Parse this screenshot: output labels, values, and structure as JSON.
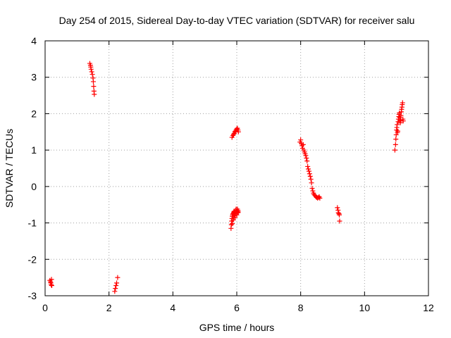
{
  "chart_data": {
    "type": "scatter",
    "title": "Day 254 of 2015, Sidereal Day-to-day VTEC variation (SDTVAR) for receiver salu",
    "xlabel": "GPS time / hours",
    "ylabel": "SDTVAR / TECUs",
    "xlim": [
      0,
      12
    ],
    "ylim": [
      -3,
      4
    ],
    "xticks": [
      "0",
      "2",
      "4",
      "6",
      "8",
      "10",
      "12"
    ],
    "yticks": [
      "-3",
      "-2",
      "-1",
      "0",
      "1",
      "2",
      "3",
      "4"
    ],
    "grid": true,
    "marker": "+",
    "series": [
      {
        "name": "SDTVAR",
        "color": "#ff0000",
        "points": [
          [
            0.15,
            -2.58
          ],
          [
            0.17,
            -2.62
          ],
          [
            0.18,
            -2.65
          ],
          [
            0.19,
            -2.7
          ],
          [
            0.2,
            -2.55
          ],
          [
            0.21,
            -2.72
          ],
          [
            1.4,
            3.38
          ],
          [
            1.42,
            3.33
          ],
          [
            1.43,
            3.28
          ],
          [
            1.44,
            3.22
          ],
          [
            1.46,
            3.15
          ],
          [
            1.48,
            3.08
          ],
          [
            1.5,
            2.98
          ],
          [
            1.51,
            2.88
          ],
          [
            1.52,
            2.75
          ],
          [
            1.53,
            2.62
          ],
          [
            1.54,
            2.53
          ],
          [
            2.18,
            -2.88
          ],
          [
            2.2,
            -2.8
          ],
          [
            2.22,
            -2.72
          ],
          [
            2.24,
            -2.65
          ],
          [
            2.27,
            -2.5
          ],
          [
            5.85,
            1.35
          ],
          [
            5.88,
            1.4
          ],
          [
            5.9,
            1.43
          ],
          [
            5.92,
            1.46
          ],
          [
            5.94,
            1.5
          ],
          [
            5.96,
            1.52
          ],
          [
            5.98,
            1.55
          ],
          [
            6.0,
            1.58
          ],
          [
            6.02,
            1.6
          ],
          [
            6.04,
            1.55
          ],
          [
            6.05,
            1.5
          ],
          [
            5.82,
            -1.15
          ],
          [
            5.83,
            -1.05
          ],
          [
            5.84,
            -0.95
          ],
          [
            5.85,
            -0.88
          ],
          [
            5.86,
            -0.82
          ],
          [
            5.87,
            -0.78
          ],
          [
            5.88,
            -0.75
          ],
          [
            5.9,
            -0.72
          ],
          [
            5.91,
            -0.7
          ],
          [
            5.92,
            -0.68
          ],
          [
            5.93,
            -0.75
          ],
          [
            5.94,
            -0.8
          ],
          [
            5.95,
            -0.85
          ],
          [
            5.96,
            -0.72
          ],
          [
            5.97,
            -0.65
          ],
          [
            5.98,
            -0.62
          ],
          [
            5.99,
            -0.7
          ],
          [
            6.0,
            -0.78
          ],
          [
            6.01,
            -0.68
          ],
          [
            6.02,
            -0.62
          ],
          [
            6.03,
            -0.72
          ],
          [
            6.04,
            -0.66
          ],
          [
            6.05,
            -0.7
          ],
          [
            5.86,
            -1.02
          ],
          [
            5.89,
            -0.92
          ],
          [
            5.91,
            -0.85
          ],
          [
            7.98,
            1.22
          ],
          [
            8.0,
            1.28
          ],
          [
            8.02,
            1.18
          ],
          [
            8.04,
            1.12
          ],
          [
            8.06,
            1.05
          ],
          [
            8.08,
            1.15
          ],
          [
            8.1,
            1.0
          ],
          [
            8.12,
            0.95
          ],
          [
            8.14,
            0.9
          ],
          [
            8.16,
            0.85
          ],
          [
            8.18,
            0.78
          ],
          [
            8.2,
            0.7
          ],
          [
            8.22,
            0.55
          ],
          [
            8.24,
            0.48
          ],
          [
            8.26,
            0.42
          ],
          [
            8.28,
            0.35
          ],
          [
            8.3,
            0.28
          ],
          [
            8.32,
            0.2
          ],
          [
            8.34,
            0.1
          ],
          [
            8.36,
            -0.05
          ],
          [
            8.38,
            -0.12
          ],
          [
            8.4,
            -0.18
          ],
          [
            8.42,
            -0.22
          ],
          [
            8.45,
            -0.25
          ],
          [
            8.48,
            -0.28
          ],
          [
            8.5,
            -0.3
          ],
          [
            8.53,
            -0.32
          ],
          [
            8.56,
            -0.3
          ],
          [
            8.58,
            -0.28
          ],
          [
            8.6,
            -0.32
          ],
          [
            9.15,
            -0.58
          ],
          [
            9.17,
            -0.65
          ],
          [
            9.18,
            -0.72
          ],
          [
            9.2,
            -0.75
          ],
          [
            9.21,
            -0.78
          ],
          [
            9.22,
            -0.95
          ],
          [
            10.95,
            1.0
          ],
          [
            10.97,
            1.15
          ],
          [
            10.98,
            1.3
          ],
          [
            10.99,
            1.42
          ],
          [
            11.0,
            1.55
          ],
          [
            11.01,
            1.62
          ],
          [
            11.02,
            1.7
          ],
          [
            11.03,
            1.48
          ],
          [
            11.04,
            1.52
          ],
          [
            11.05,
            1.78
          ],
          [
            11.06,
            1.85
          ],
          [
            11.07,
            1.92
          ],
          [
            11.08,
            1.98
          ],
          [
            11.09,
            2.02
          ],
          [
            11.1,
            1.9
          ],
          [
            11.11,
            1.8
          ],
          [
            11.12,
            1.75
          ],
          [
            11.13,
            1.82
          ],
          [
            11.14,
            1.95
          ],
          [
            11.15,
            2.05
          ],
          [
            11.16,
            2.12
          ],
          [
            11.17,
            2.18
          ],
          [
            11.18,
            2.25
          ],
          [
            11.19,
            2.3
          ],
          [
            11.2,
            1.85
          ],
          [
            11.21,
            1.8
          ]
        ]
      }
    ]
  }
}
